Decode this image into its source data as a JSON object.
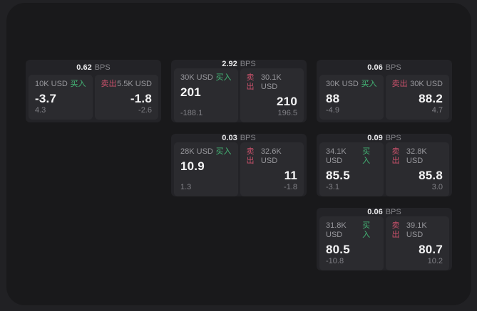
{
  "labels": {
    "bps_unit": "BPS",
    "side_buy": "买入",
    "side_sell": "卖出"
  },
  "colors": {
    "buy_green": "#44b877",
    "sell_red": "#c9516b",
    "panel_bg": "#19191b",
    "card_bg": "#232327",
    "tile_bg": "#2b2b2f"
  },
  "cards": [
    {
      "col": 1,
      "row": 1,
      "bps": "0.62",
      "buy": {
        "size": "10K USD",
        "value": "-3.7",
        "delta": "4.3"
      },
      "sell": {
        "size": "5.5K USD",
        "value": "-1.8",
        "delta": "-2.6"
      }
    },
    {
      "col": 2,
      "row": 1,
      "bps": "2.92",
      "buy": {
        "size": "30K USD",
        "value": "201",
        "delta": "-188.1"
      },
      "sell": {
        "size": "30.1K USD",
        "value": "210",
        "delta": "196.5"
      }
    },
    {
      "col": 3,
      "row": 1,
      "bps": "0.06",
      "buy": {
        "size": "30K USD",
        "value": "88",
        "delta": "-4.9"
      },
      "sell": {
        "size": "30K USD",
        "value": "88.2",
        "delta": "4.7"
      }
    },
    {
      "col": 2,
      "row": 2,
      "bps": "0.03",
      "buy": {
        "size": "28K USD",
        "value": "10.9",
        "delta": "1.3"
      },
      "sell": {
        "size": "32.6K USD",
        "value": "11",
        "delta": "-1.8"
      }
    },
    {
      "col": 3,
      "row": 2,
      "bps": "0.09",
      "buy": {
        "size": "34.1K USD",
        "value": "85.5",
        "delta": "-3.1"
      },
      "sell": {
        "size": "32.8K USD",
        "value": "85.8",
        "delta": "3.0"
      }
    },
    {
      "col": 3,
      "row": 3,
      "bps": "0.06",
      "buy": {
        "size": "31.8K USD",
        "value": "80.5",
        "delta": "-10.8"
      },
      "sell": {
        "size": "39.1K USD",
        "value": "80.7",
        "delta": "10.2"
      }
    }
  ]
}
